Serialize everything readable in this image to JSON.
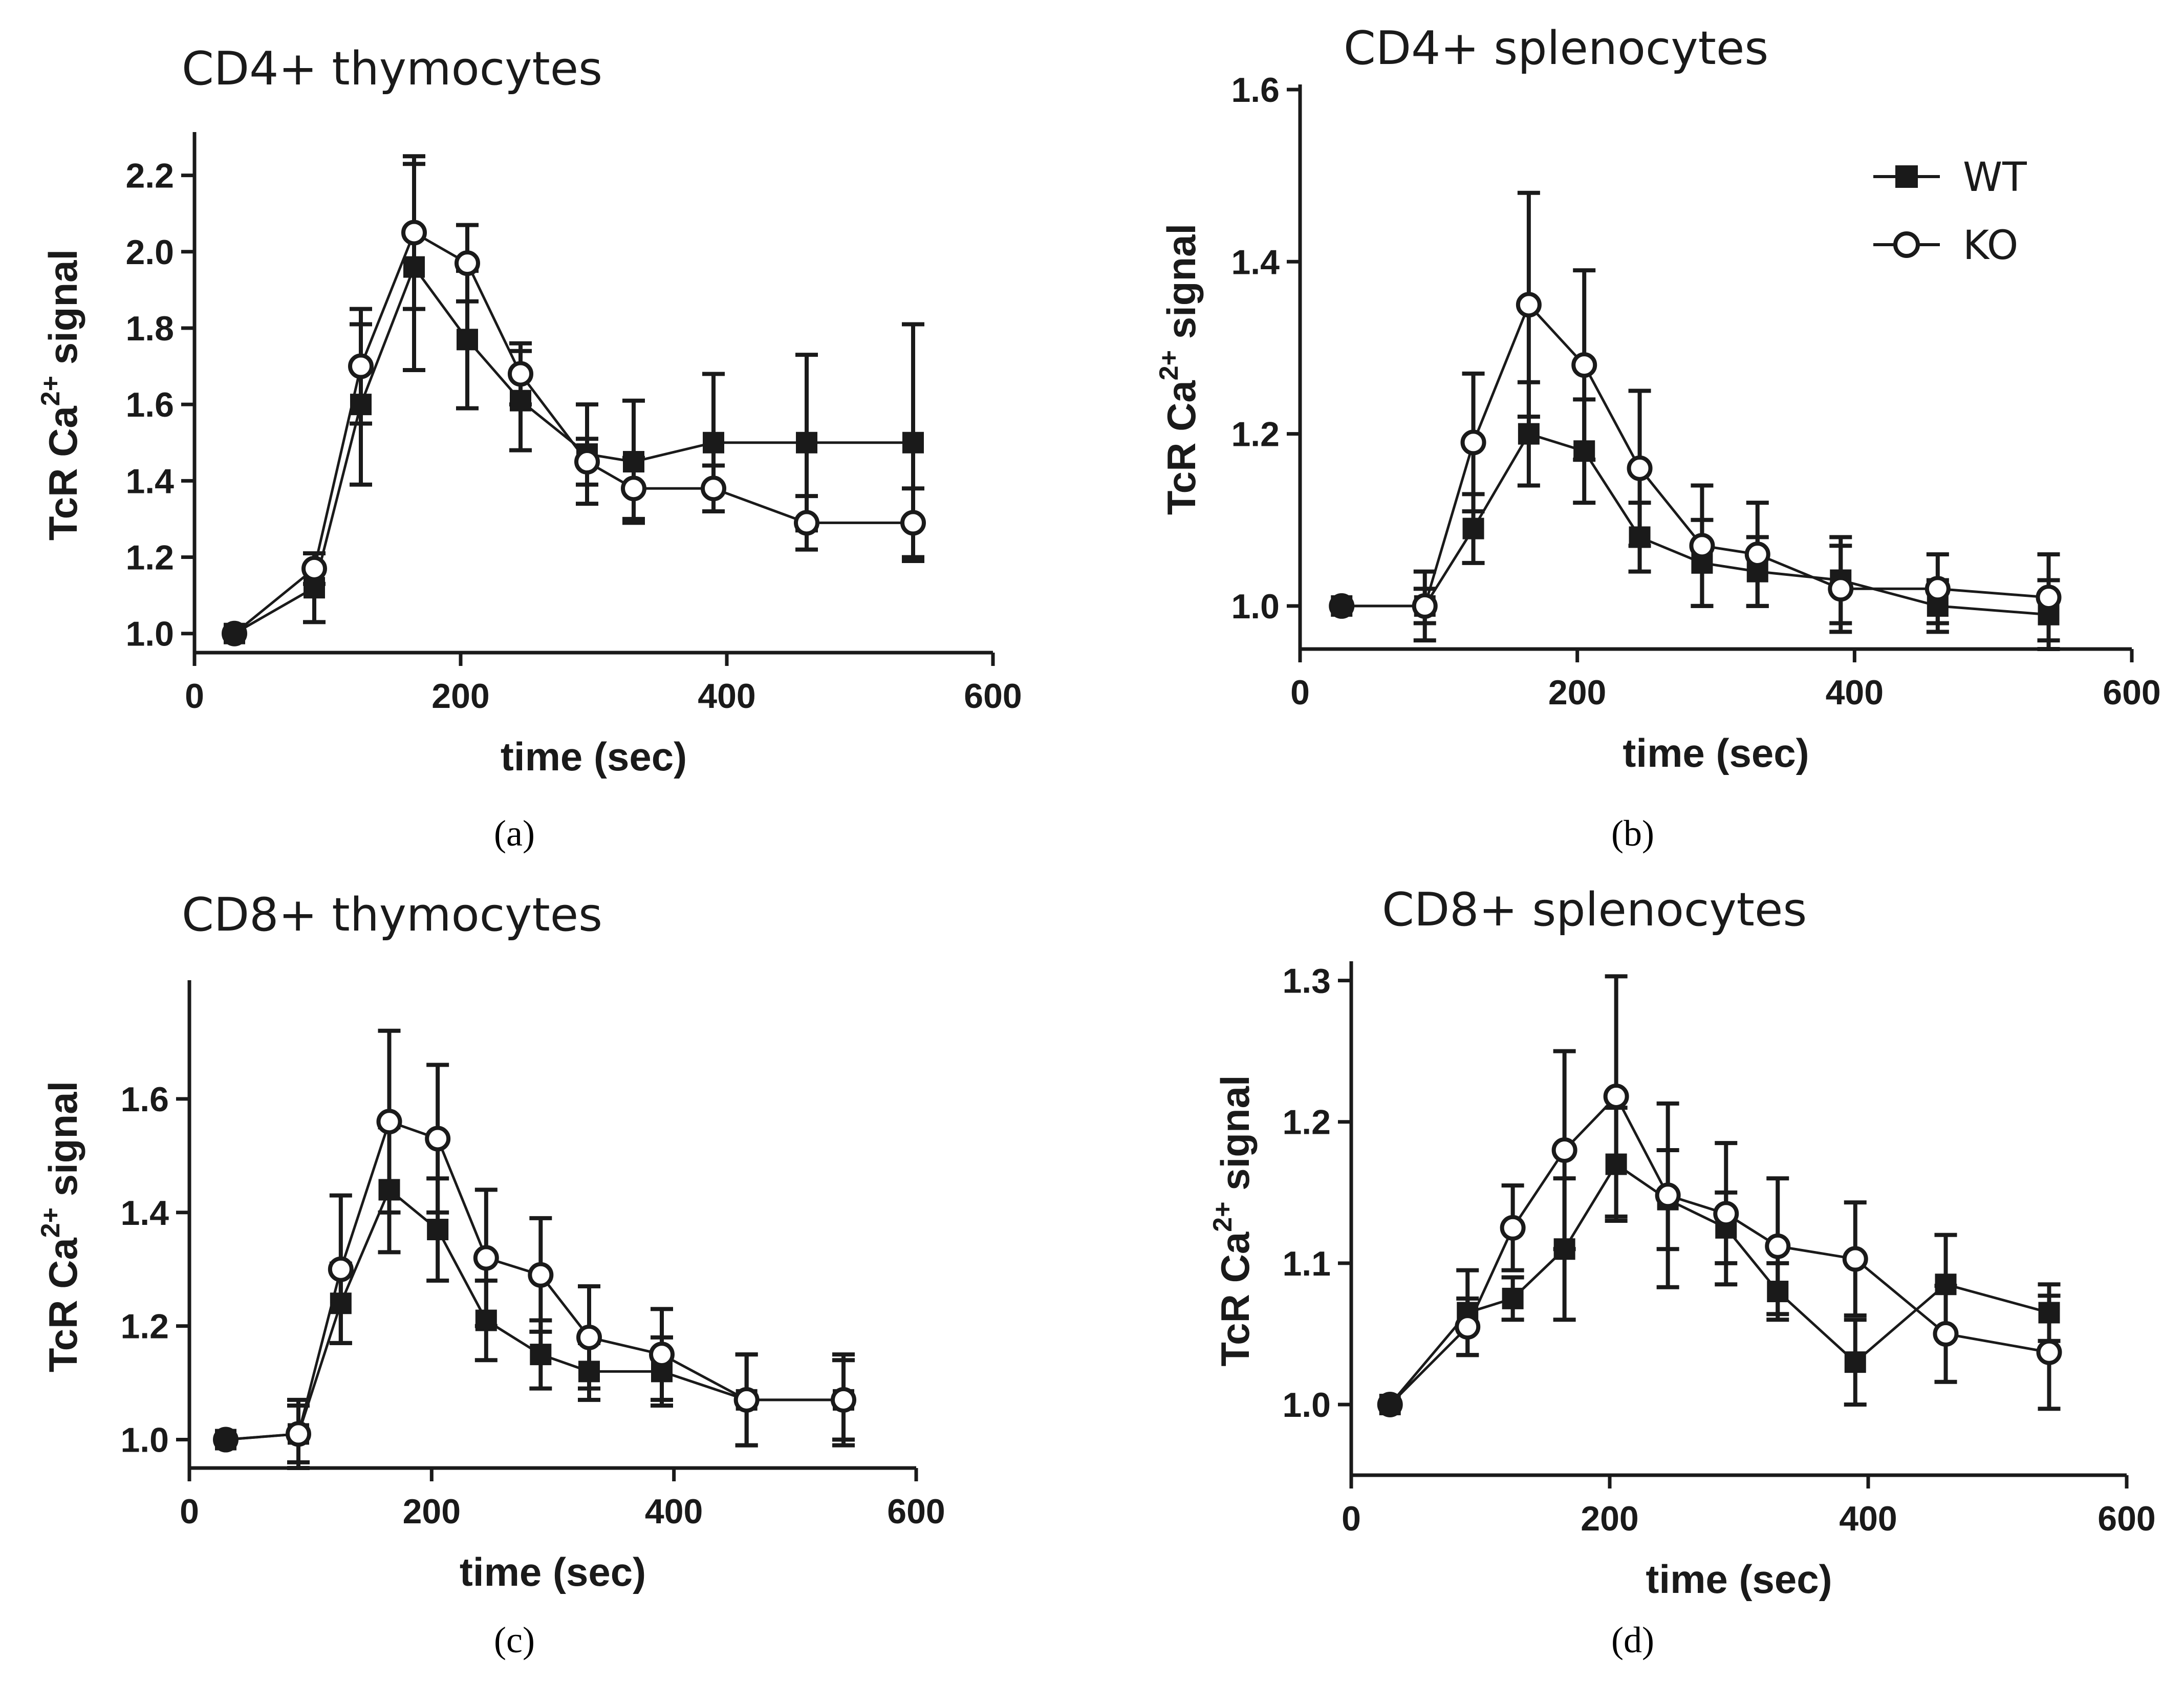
{
  "colors": {
    "ink": "#1a1a1a",
    "background": "#ffffff"
  },
  "legend": {
    "items": [
      {
        "label": "WT",
        "marker": "filled-square"
      },
      {
        "label": "KO",
        "marker": "open-circle"
      }
    ]
  },
  "chart_data": [
    {
      "id": "a",
      "type": "line",
      "panel_label": "(a)",
      "title": "CD4+ thymocytes",
      "xlabel": "time (sec)",
      "ylabel_main": "TcR Ca",
      "ylabel_sup": "2+",
      "ylabel_tail": " signal",
      "xlim": [
        0,
        600
      ],
      "ylim": [
        0.95,
        2.3
      ],
      "xticks": [
        0,
        200,
        400,
        600
      ],
      "yticks": [
        1.0,
        1.2,
        1.4,
        1.6,
        1.8,
        2.0,
        2.2
      ],
      "ytick_labels": [
        "1.0",
        "1.2",
        "1.4",
        "1.6",
        "1.8",
        "2.0",
        "2.2"
      ],
      "x": [
        30,
        90,
        125,
        165,
        205,
        245,
        295,
        330,
        390,
        460,
        540
      ],
      "series": [
        {
          "name": "WT",
          "values": [
            1.0,
            1.12,
            1.6,
            1.96,
            1.77,
            1.61,
            1.47,
            1.45,
            1.5,
            1.5,
            1.5
          ],
          "errors": [
            0.0,
            0.09,
            0.21,
            0.27,
            0.18,
            0.13,
            0.13,
            0.16,
            0.18,
            0.23,
            0.31
          ]
        },
        {
          "name": "KO",
          "values": [
            1.0,
            1.17,
            1.7,
            2.05,
            1.97,
            1.68,
            1.45,
            1.38,
            1.38,
            1.29,
            1.29
          ],
          "errors": [
            0.0,
            0.04,
            0.15,
            0.2,
            0.1,
            0.08,
            0.06,
            0.08,
            0.06,
            0.07,
            0.09
          ]
        }
      ]
    },
    {
      "id": "b",
      "type": "line",
      "panel_label": "(b)",
      "title": "CD4+ splenocytes",
      "xlabel": "time (sec)",
      "ylabel_main": "TcR Ca",
      "ylabel_sup": "2+",
      "ylabel_tail": " signal",
      "xlim": [
        0,
        600
      ],
      "ylim": [
        0.95,
        1.6
      ],
      "xticks": [
        0,
        200,
        400,
        600
      ],
      "yticks": [
        1.0,
        1.2,
        1.4,
        1.6
      ],
      "ytick_labels": [
        "1.0",
        "1.2",
        "1.4",
        "1.6"
      ],
      "x": [
        30,
        90,
        125,
        165,
        205,
        245,
        290,
        330,
        390,
        460,
        540
      ],
      "series": [
        {
          "name": "WT",
          "values": [
            1.0,
            1.0,
            1.09,
            1.2,
            1.18,
            1.08,
            1.05,
            1.04,
            1.03,
            1.0,
            0.99
          ],
          "errors": [
            0.0,
            0.04,
            0.04,
            0.06,
            0.06,
            0.04,
            0.05,
            0.04,
            0.05,
            0.03,
            0.04
          ]
        },
        {
          "name": "KO",
          "values": [
            1.0,
            1.0,
            1.19,
            1.35,
            1.28,
            1.16,
            1.07,
            1.06,
            1.02,
            1.02,
            1.01
          ],
          "errors": [
            0.0,
            0.02,
            0.08,
            0.13,
            0.11,
            0.09,
            0.07,
            0.06,
            0.05,
            0.04,
            0.05
          ]
        }
      ]
    },
    {
      "id": "c",
      "type": "line",
      "panel_label": "(c)",
      "title": "CD8+ thymocytes",
      "xlabel": "time (sec)",
      "ylabel_main": "TcR Ca",
      "ylabel_sup": "2+",
      "ylabel_tail": " signal",
      "xlim": [
        0,
        600
      ],
      "ylim": [
        0.95,
        1.8
      ],
      "xticks": [
        0,
        200,
        400,
        600
      ],
      "yticks": [
        1.0,
        1.2,
        1.4,
        1.6
      ],
      "ytick_labels": [
        "1.0",
        "1.2",
        "1.4",
        "1.6"
      ],
      "x": [
        30,
        90,
        125,
        165,
        205,
        245,
        290,
        330,
        390,
        460,
        540
      ],
      "series": [
        {
          "name": "WT",
          "values": [
            1.0,
            1.01,
            1.24,
            1.44,
            1.37,
            1.21,
            1.15,
            1.12,
            1.12,
            1.07,
            1.07
          ],
          "errors": [
            0.0,
            0.05,
            0.07,
            0.11,
            0.09,
            0.07,
            0.06,
            0.05,
            0.06,
            0.08,
            0.07
          ]
        },
        {
          "name": "KO",
          "values": [
            1.0,
            1.01,
            1.3,
            1.56,
            1.53,
            1.32,
            1.29,
            1.18,
            1.15,
            1.07,
            1.07
          ],
          "errors": [
            0.0,
            0.06,
            0.13,
            0.16,
            0.13,
            0.12,
            0.1,
            0.09,
            0.08,
            0.08,
            0.08
          ]
        }
      ]
    },
    {
      "id": "d",
      "type": "line",
      "panel_label": "(d)",
      "title": "CD8+ splenocytes",
      "xlabel": "time (sec)",
      "ylabel_main": "TcR Ca",
      "ylabel_sup": "2+",
      "ylabel_tail": " signal",
      "xlim": [
        0,
        600
      ],
      "ylim": [
        0.95,
        1.31
      ],
      "xticks": [
        0,
        200,
        400,
        600
      ],
      "yticks": [
        1.0,
        1.1,
        1.2,
        1.3
      ],
      "ytick_labels": [
        "1.0",
        "1.1",
        "1.2",
        "1.3"
      ],
      "x": [
        30,
        90,
        125,
        165,
        205,
        245,
        290,
        330,
        390,
        460,
        540
      ],
      "series": [
        {
          "name": "WT",
          "values": [
            1.0,
            1.065,
            1.075,
            1.11,
            1.17,
            1.145,
            1.125,
            1.08,
            1.03,
            1.085,
            1.065
          ],
          "errors": [
            0.0,
            0.03,
            0.015,
            0.05,
            0.04,
            0.035,
            0.025,
            0.02,
            0.03,
            0.035,
            0.02
          ]
        },
        {
          "name": "KO",
          "values": [
            1.0,
            1.055,
            1.125,
            1.18,
            1.218,
            1.148,
            1.135,
            1.112,
            1.103,
            1.05,
            1.037
          ],
          "errors": [
            0.0,
            0.02,
            0.03,
            0.07,
            0.085,
            0.065,
            0.05,
            0.048,
            0.04,
            0.034,
            0.04
          ]
        }
      ]
    }
  ]
}
